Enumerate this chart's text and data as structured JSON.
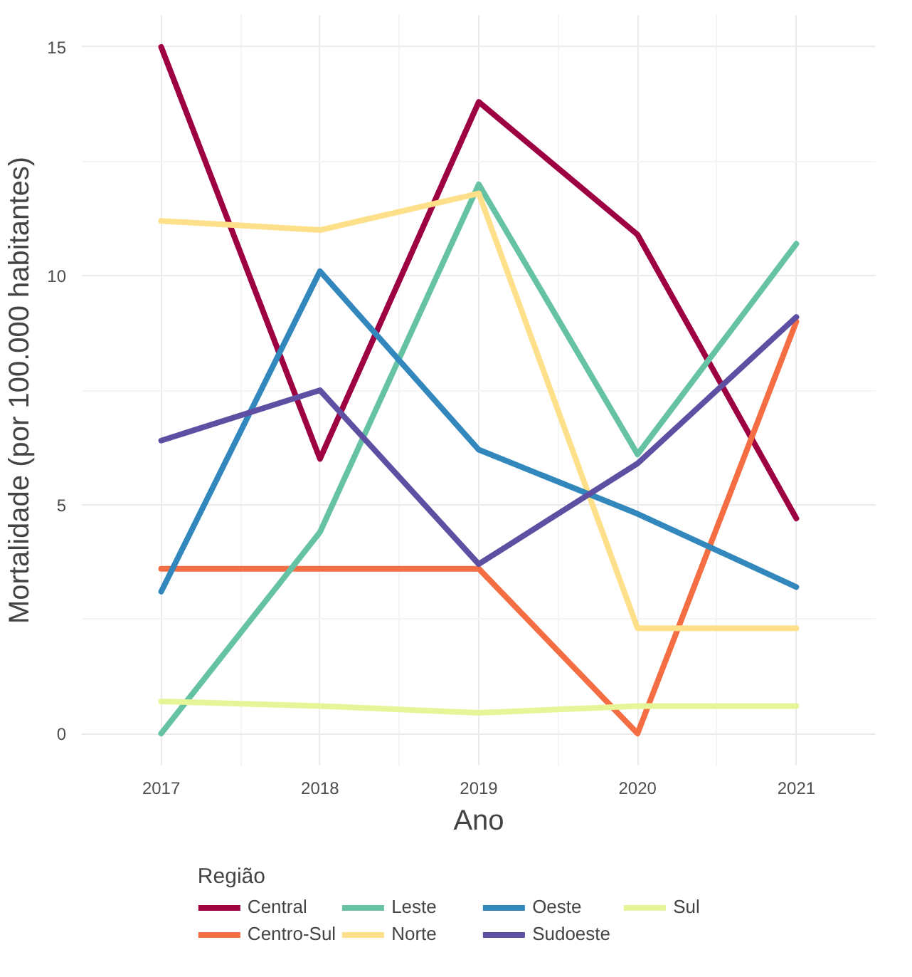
{
  "chart_data": {
    "type": "line",
    "xlabel": "Ano",
    "ylabel": "Mortalidade (por 100.000 habitantes)",
    "legend_title": "Região",
    "x": [
      2017,
      2018,
      2019,
      2020,
      2021
    ],
    "series": [
      {
        "name": "Central",
        "color": "#9e0142",
        "values": [
          15.0,
          6.0,
          13.8,
          10.9,
          4.7
        ]
      },
      {
        "name": "Centro-Sul",
        "color": "#f46d43",
        "values": [
          3.6,
          3.6,
          3.6,
          0.0,
          9.0
        ]
      },
      {
        "name": "Leste",
        "color": "#66c2a5",
        "values": [
          0.0,
          4.4,
          12.0,
          6.1,
          10.7
        ]
      },
      {
        "name": "Norte",
        "color": "#fee08b",
        "values": [
          11.2,
          11.0,
          11.8,
          2.3,
          2.3
        ]
      },
      {
        "name": "Oeste",
        "color": "#3288bd",
        "values": [
          3.1,
          10.1,
          6.2,
          4.8,
          3.2
        ]
      },
      {
        "name": "Sudoeste",
        "color": "#5e4fa2",
        "values": [
          6.4,
          7.5,
          3.7,
          5.9,
          9.1
        ]
      },
      {
        "name": "Sul",
        "color": "#e6f598",
        "values": [
          0.7,
          0.6,
          0.45,
          0.6,
          0.6
        ]
      }
    ],
    "xlim": [
      2016.5,
      2021.5
    ],
    "ylim": [
      -0.7,
      15.7
    ],
    "xticks": [
      2017,
      2018,
      2019,
      2020,
      2021
    ],
    "yticks": [
      0,
      5,
      10,
      15
    ],
    "grid": true,
    "legend": "bottom",
    "line_style": "solid",
    "marker": "none"
  }
}
